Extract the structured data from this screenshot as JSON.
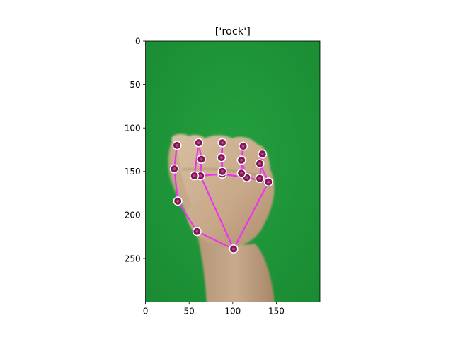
{
  "figure": {
    "title": "['rock']"
  },
  "chart_data": {
    "type": "scatter",
    "title": "['rock']",
    "xlabel": "",
    "ylabel": "",
    "xlim": [
      0,
      200
    ],
    "ylim": [
      300,
      0
    ],
    "x_ticks": [
      "0",
      "50",
      "100",
      "150"
    ],
    "y_ticks": [
      "0",
      "50",
      "100",
      "150",
      "200",
      "250"
    ],
    "grid": false,
    "colors": {
      "background_green": "#1f9438",
      "skin": "#c9ad91",
      "connection": "#ee33ee",
      "landmark_fill": "#7a1a55",
      "landmark_ring": "#ffffff"
    },
    "landmarks": [
      {
        "id": 0,
        "x": 101,
        "y": 239
      },
      {
        "id": 1,
        "x": 59,
        "y": 219
      },
      {
        "id": 2,
        "x": 37,
        "y": 184
      },
      {
        "id": 3,
        "x": 33,
        "y": 147
      },
      {
        "id": 4,
        "x": 36,
        "y": 120
      },
      {
        "id": 5,
        "x": 63,
        "y": 155
      },
      {
        "id": 6,
        "x": 64,
        "y": 136
      },
      {
        "id": 7,
        "x": 61,
        "y": 117
      },
      {
        "id": 8,
        "x": 56,
        "y": 155
      },
      {
        "id": 9,
        "x": 88,
        "y": 153
      },
      {
        "id": 10,
        "x": 87,
        "y": 134
      },
      {
        "id": 11,
        "x": 88,
        "y": 117
      },
      {
        "id": 12,
        "x": 88,
        "y": 150
      },
      {
        "id": 13,
        "x": 116,
        "y": 157
      },
      {
        "id": 14,
        "x": 110,
        "y": 137
      },
      {
        "id": 15,
        "x": 112,
        "y": 121
      },
      {
        "id": 16,
        "x": 110,
        "y": 152
      },
      {
        "id": 17,
        "x": 141,
        "y": 162
      },
      {
        "id": 18,
        "x": 131,
        "y": 141
      },
      {
        "id": 19,
        "x": 134,
        "y": 130
      },
      {
        "id": 20,
        "x": 131,
        "y": 158
      }
    ],
    "connections": [
      [
        0,
        1
      ],
      [
        1,
        2
      ],
      [
        2,
        3
      ],
      [
        3,
        4
      ],
      [
        0,
        5
      ],
      [
        5,
        6
      ],
      [
        6,
        7
      ],
      [
        7,
        8
      ],
      [
        5,
        9
      ],
      [
        9,
        10
      ],
      [
        10,
        11
      ],
      [
        11,
        12
      ],
      [
        9,
        13
      ],
      [
        13,
        14
      ],
      [
        14,
        15
      ],
      [
        15,
        16
      ],
      [
        13,
        17
      ],
      [
        17,
        18
      ],
      [
        18,
        19
      ],
      [
        19,
        20
      ],
      [
        0,
        17
      ]
    ]
  }
}
